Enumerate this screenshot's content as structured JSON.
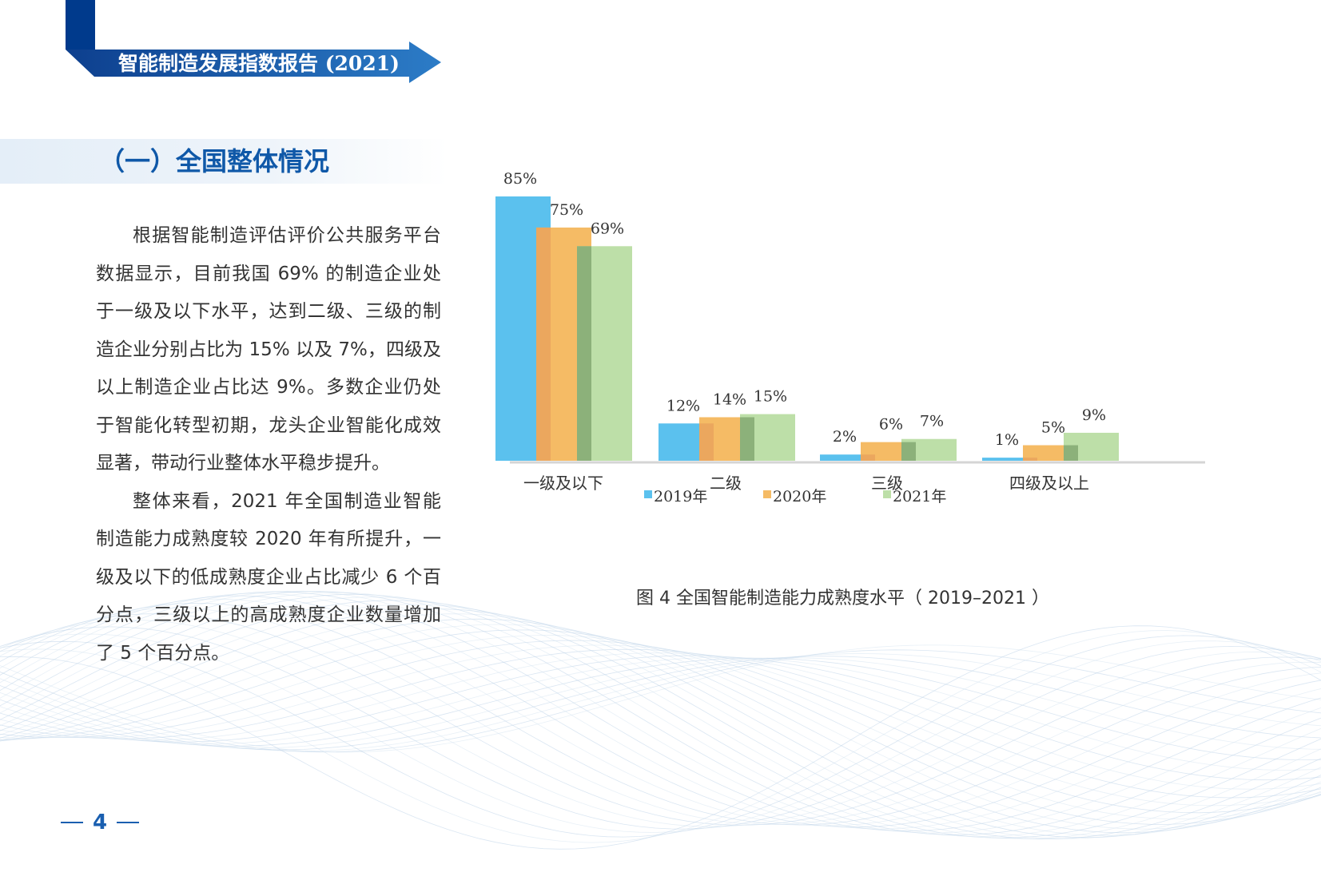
{
  "header": {
    "report_title": "智能制造发展指数报告 (2021)"
  },
  "section": {
    "title": "（一）全国整体情况"
  },
  "body": {
    "paragraphs": [
      "根据智能制造评估评价公共服务平台数据显示，目前我国 69% 的制造企业处于一级及以下水平，达到二级、三级的制造企业分别占比为 15% 以及 7%，四级及以上制造企业占比达 9%。多数企业仍处于智能化转型初期，龙头企业智能化成效显著，带动行业整体水平稳步提升。",
      "整体来看，2021 年全国制造业智能制造能力成熟度较 2020 年有所提升，一级及以下的低成熟度企业占比减少 6 个百分点，三级以上的高成熟度企业数量增加了 5 个百分点。"
    ]
  },
  "chart_data": {
    "type": "bar",
    "title": "",
    "xlabel": "",
    "ylabel": "",
    "categories": [
      "一级及以下",
      "二级",
      "三级",
      "四级及以上"
    ],
    "series": [
      {
        "name": "2019年",
        "values": [
          85,
          12,
          2,
          1
        ],
        "labels": [
          "85%",
          "12%",
          "2%",
          "1%"
        ],
        "color": "#5bc1ee"
      },
      {
        "name": "2020年",
        "values": [
          75,
          14,
          6,
          5
        ],
        "labels": [
          "75%",
          "14%",
          "6%",
          "5%"
        ],
        "color": "#f5bb65"
      },
      {
        "name": "2021年",
        "values": [
          69,
          15,
          7,
          9
        ],
        "labels": [
          "69%",
          "15%",
          "7%",
          "9%"
        ],
        "color": "#bddfa8"
      }
    ],
    "overlap_colors": [
      "#eba75e",
      "#8cb17a"
    ],
    "ylim": [
      0,
      85
    ],
    "grid": false,
    "legend_position": "bottom"
  },
  "caption": {
    "text": "图 4  全国智能制造能力成熟度水平（ 2019–2021 ）"
  },
  "footer": {
    "page_number": "4"
  },
  "colors": {
    "primary_blue": "#003a8c",
    "banner_blue": "#1a5fb0",
    "title_blue": "#0f58a8"
  }
}
